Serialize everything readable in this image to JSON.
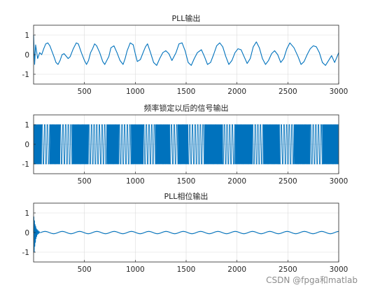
{
  "watermark": "CSDN @fpga和matlab",
  "chart_data": [
    {
      "type": "line",
      "title": "PLL输出",
      "xlim": [
        0,
        3000
      ],
      "ylim": [
        -1.5,
        1.5
      ],
      "xticks": [
        500,
        1000,
        1500,
        2000,
        2500,
        3000
      ],
      "yticks": [
        1,
        0,
        -1
      ],
      "grid": true,
      "line_color": "#0072BD",
      "series": [
        {
          "x": [
            0,
            10,
            20,
            40,
            60,
            80,
            100,
            120,
            140,
            160,
            200,
            220,
            240,
            260,
            280,
            300,
            340,
            360,
            390,
            420,
            440,
            470,
            500,
            520,
            540,
            560,
            580,
            600,
            620,
            650,
            680,
            700,
            740,
            760,
            790,
            820,
            850,
            880,
            900,
            920,
            950,
            980,
            1000,
            1020,
            1050,
            1080,
            1100,
            1120,
            1150,
            1180,
            1210,
            1240,
            1270,
            1300,
            1330,
            1360,
            1400,
            1430,
            1460,
            1490,
            1520,
            1550,
            1580,
            1610,
            1650,
            1680,
            1710,
            1740,
            1770,
            1800,
            1830,
            1860,
            1890,
            1920,
            1950,
            1980,
            2010,
            2040,
            2070,
            2100,
            2130,
            2160,
            2190,
            2220,
            2250,
            2280,
            2310,
            2340,
            2370,
            2400,
            2430,
            2460,
            2490,
            2520,
            2560,
            2600,
            2630,
            2660,
            2690,
            2720,
            2750,
            2780,
            2810,
            2840,
            2870,
            2900,
            2930,
            2960,
            3000
          ],
          "y": [
            1.0,
            -0.5,
            0.5,
            -0.2,
            0.1,
            0.0,
            0.3,
            0.55,
            0.6,
            0.45,
            -0.1,
            -0.4,
            -0.5,
            -0.3,
            0.0,
            0.05,
            -0.2,
            -0.1,
            0.3,
            0.6,
            0.55,
            0.1,
            -0.3,
            -0.5,
            -0.3,
            0.1,
            0.3,
            0.55,
            0.45,
            0.1,
            -0.35,
            -0.5,
            -0.1,
            0.35,
            0.45,
            0.1,
            -0.3,
            -0.5,
            -0.2,
            0.2,
            0.6,
            0.5,
            0.05,
            -0.35,
            -0.25,
            0.15,
            0.4,
            0.55,
            0.1,
            -0.4,
            -0.55,
            -0.2,
            0.1,
            0.2,
            0.05,
            -0.3,
            0.1,
            0.55,
            0.6,
            0.2,
            -0.4,
            -0.55,
            -0.2,
            0.1,
            0.25,
            -0.1,
            -0.5,
            -0.4,
            0.0,
            0.45,
            0.6,
            0.4,
            -0.1,
            -0.5,
            -0.3,
            0.1,
            0.3,
            0.25,
            -0.1,
            -0.45,
            -0.2,
            0.4,
            0.65,
            0.35,
            -0.2,
            -0.5,
            -0.3,
            0.05,
            0.2,
            0.0,
            -0.4,
            -0.2,
            0.3,
            0.6,
            0.35,
            -0.1,
            -0.5,
            -0.35,
            0.0,
            0.3,
            0.45,
            0.4,
            0.1,
            -0.4,
            -0.55,
            -0.3,
            -0.05,
            -0.4,
            0.1
          ]
        }
      ]
    },
    {
      "type": "line",
      "title": "频率锁定以后的信号输出",
      "xlim": [
        0,
        3000
      ],
      "ylim": [
        -1.5,
        1.5
      ],
      "xticks": [
        500,
        1000,
        1500,
        2000,
        2500,
        3000
      ],
      "yticks": [
        1,
        0,
        -1
      ],
      "grid": true,
      "line_color": "#0072BD",
      "segments": [
        {
          "x0": 0,
          "x1": 80,
          "density": "dense"
        },
        {
          "x0": 80,
          "x1": 160,
          "density": "sparse"
        },
        {
          "x0": 160,
          "x1": 260,
          "density": "dense"
        },
        {
          "x0": 260,
          "x1": 380,
          "density": "sparse"
        },
        {
          "x0": 380,
          "x1": 540,
          "density": "dense"
        },
        {
          "x0": 540,
          "x1": 720,
          "density": "sparse"
        },
        {
          "x0": 720,
          "x1": 840,
          "density": "dense"
        },
        {
          "x0": 840,
          "x1": 960,
          "density": "sparse"
        },
        {
          "x0": 960,
          "x1": 1080,
          "density": "dense"
        },
        {
          "x0": 1080,
          "x1": 1200,
          "density": "sparse"
        },
        {
          "x0": 1200,
          "x1": 1340,
          "density": "dense"
        },
        {
          "x0": 1340,
          "x1": 1420,
          "density": "sparse"
        },
        {
          "x0": 1420,
          "x1": 1520,
          "density": "dense"
        },
        {
          "x0": 1520,
          "x1": 1680,
          "density": "sparse"
        },
        {
          "x0": 1680,
          "x1": 1860,
          "density": "dense"
        },
        {
          "x0": 1860,
          "x1": 1980,
          "density": "sparse"
        },
        {
          "x0": 1980,
          "x1": 2150,
          "density": "dense"
        },
        {
          "x0": 2150,
          "x1": 2260,
          "density": "sparse"
        },
        {
          "x0": 2260,
          "x1": 2420,
          "density": "dense"
        },
        {
          "x0": 2420,
          "x1": 2560,
          "density": "sparse"
        },
        {
          "x0": 2560,
          "x1": 2720,
          "density": "dense"
        },
        {
          "x0": 2720,
          "x1": 2840,
          "density": "sparse"
        },
        {
          "x0": 2840,
          "x1": 3000,
          "density": "dense"
        }
      ]
    },
    {
      "type": "line",
      "title": "PLL相位输出",
      "xlim": [
        0,
        3000
      ],
      "ylim": [
        -1.5,
        1.5
      ],
      "xticks": [
        500,
        1000,
        1500,
        2000,
        2500,
        3000
      ],
      "yticks": [
        1,
        0,
        -1
      ],
      "grid": true,
      "line_color": "#0072BD",
      "series": [
        {
          "transient_x": [
            0,
            3,
            6,
            9,
            12,
            15,
            18,
            21,
            24,
            27,
            30,
            35,
            40,
            45,
            50,
            55,
            60,
            70
          ],
          "transient_y": [
            0.0,
            0.8,
            -1.0,
            0.6,
            -0.7,
            0.4,
            -0.5,
            0.3,
            -0.3,
            0.2,
            -0.2,
            0.15,
            -0.1,
            0.1,
            -0.05,
            0.05,
            0.0,
            0.0
          ],
          "steady_amplitude": 0.06,
          "steady_period": 170
        }
      ]
    }
  ]
}
